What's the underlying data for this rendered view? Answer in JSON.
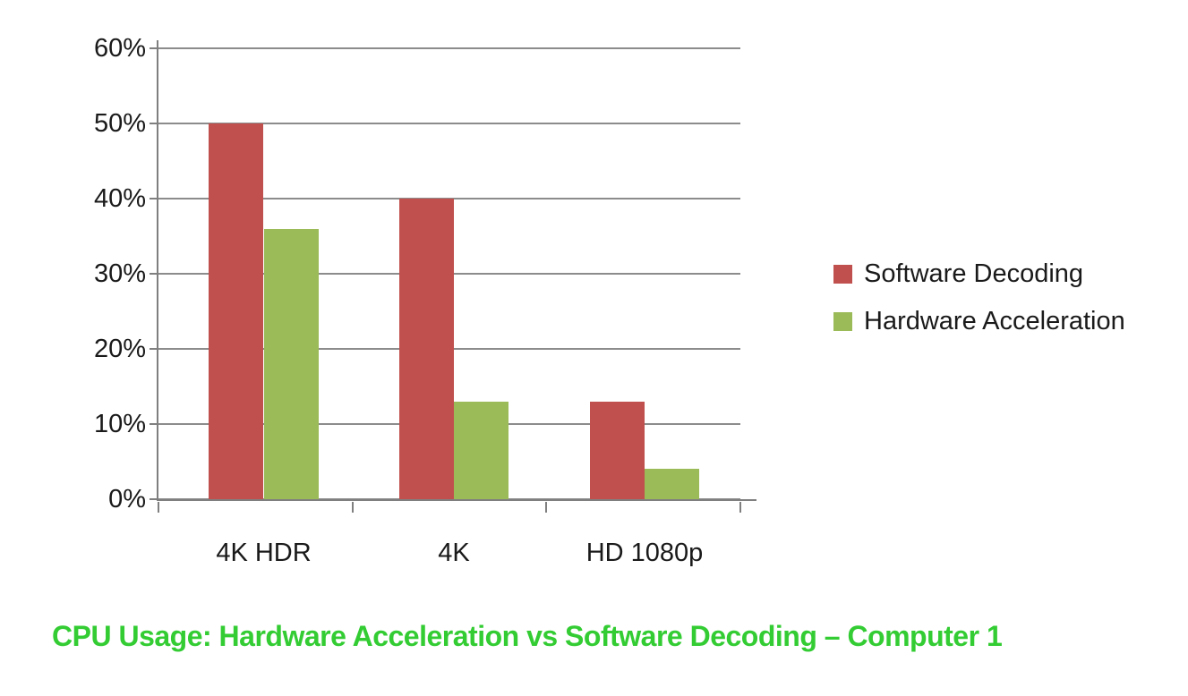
{
  "chart_data": {
    "type": "bar",
    "title": "CPU Usage: Hardware Acceleration vs Software Decoding – Computer 1",
    "title_color": "#33CC33",
    "categories": [
      "4K HDR",
      "4K",
      "HD 1080p"
    ],
    "series": [
      {
        "name": "Software Decoding",
        "color": "#C0504D",
        "values": [
          50,
          40,
          13
        ]
      },
      {
        "name": "Hardware Acceleration",
        "color": "#9BBB59",
        "values": [
          36,
          13,
          4
        ]
      }
    ],
    "ylabel": "",
    "xlabel": "",
    "ylim": [
      0,
      60
    ],
    "ytick_step": 10,
    "ytick_labels": [
      "0%",
      "10%",
      "20%",
      "30%",
      "40%",
      "50%",
      "60%"
    ],
    "grid": true,
    "legend_position": "right",
    "gridline_color": "#8C8C8C",
    "axis_color": "#7F7F7F",
    "text_color": "#1A1A1A",
    "background_color": "#FFFFFF"
  }
}
